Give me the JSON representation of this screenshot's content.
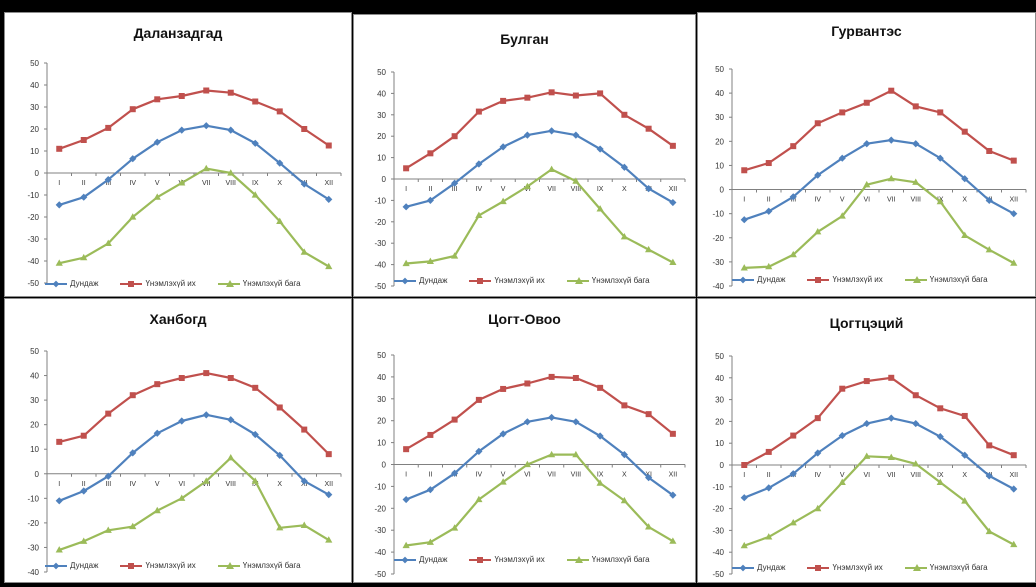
{
  "colors": {
    "avg": "#4F81BD",
    "max": "#C0504D",
    "min": "#9BBB59",
    "grid_axis": "#808080",
    "background": "#ffffff"
  },
  "legend_labels": [
    "Дундаж",
    "Үнэмлэхүй их",
    "Үнэмлэхүй бага"
  ],
  "chart_data": [
    {
      "type": "line",
      "title": "Даланзадгад",
      "categories": [
        "I",
        "II",
        "III",
        "IV",
        "V",
        "VI",
        "VII",
        "VIII",
        "IX",
        "X",
        "XI",
        "XII"
      ],
      "ylim": [
        -50,
        50
      ],
      "yticks": [
        50,
        40,
        30,
        20,
        10,
        0,
        -10,
        -20,
        -30,
        -40,
        -50
      ],
      "grid": false,
      "legend_position": "bottom",
      "series": [
        {
          "name": "Дундаж",
          "marker": "diamond",
          "values": [
            -14.5,
            -11,
            -3,
            6.5,
            14,
            19.5,
            21.5,
            19.5,
            13.5,
            4.5,
            -5,
            -12
          ]
        },
        {
          "name": "Үнэмлэхүй их",
          "marker": "square",
          "values": [
            11,
            15,
            20.5,
            29,
            33.5,
            35,
            37.5,
            36.5,
            32.5,
            28,
            20,
            12.5
          ]
        },
        {
          "name": "Үнэмлэхүй бага",
          "marker": "triangle",
          "values": [
            -41,
            -38.5,
            -32,
            -20,
            -11,
            -4.5,
            2,
            0,
            -10,
            -22,
            -36,
            -42.5
          ]
        }
      ]
    },
    {
      "type": "line",
      "title": "Булган",
      "categories": [
        "I",
        "II",
        "III",
        "IV",
        "V",
        "VI",
        "VII",
        "VIII",
        "IX",
        "X",
        "XI",
        "XII"
      ],
      "ylim": [
        -50,
        50
      ],
      "yticks": [
        50,
        40,
        30,
        20,
        10,
        0,
        -10,
        -20,
        -30,
        -40,
        -50
      ],
      "grid": false,
      "legend_position": "bottom",
      "series": [
        {
          "name": "Дундаж",
          "marker": "diamond",
          "values": [
            -13,
            -10,
            -2,
            7,
            15,
            20.5,
            22.5,
            20.5,
            14,
            5.5,
            -4.5,
            -11
          ]
        },
        {
          "name": "Үнэмлэхүй их",
          "marker": "square",
          "values": [
            5,
            12,
            20,
            31.5,
            36.5,
            38,
            40.5,
            39,
            40,
            30,
            23.5,
            15.5
          ]
        },
        {
          "name": "Үнэмлэхүй бага",
          "marker": "triangle",
          "values": [
            -39.5,
            -38.5,
            -36,
            -17,
            -10.5,
            -3.5,
            4.5,
            -1,
            -14,
            -27,
            -33,
            -39
          ]
        }
      ]
    },
    {
      "type": "line",
      "title": "Гурвантэс",
      "categories": [
        "I",
        "II",
        "III",
        "IV",
        "V",
        "VI",
        "VII",
        "VIII",
        "IX",
        "X",
        "XI",
        "XII"
      ],
      "ylim": [
        -40,
        50
      ],
      "yticks": [
        50,
        40,
        30,
        20,
        10,
        0,
        -10,
        -20,
        -30,
        -40
      ],
      "grid": false,
      "legend_position": "bottom",
      "series": [
        {
          "name": "Дундаж",
          "marker": "diamond",
          "values": [
            -12.5,
            -9,
            -3,
            6,
            13,
            19,
            20.5,
            19,
            13,
            4.5,
            -4.5,
            -10
          ]
        },
        {
          "name": "Үнэмлэхүй их",
          "marker": "square",
          "values": [
            8,
            11,
            18,
            27.5,
            32,
            36,
            41,
            34.5,
            32,
            24,
            16,
            12
          ]
        },
        {
          "name": "Үнэмлэхүй бага",
          "marker": "triangle",
          "values": [
            -32.5,
            -32,
            -27,
            -17.5,
            -11,
            2,
            4.5,
            3,
            -5,
            -19,
            -25,
            -30.5
          ]
        }
      ]
    },
    {
      "type": "line",
      "title": "Ханбогд",
      "categories": [
        "I",
        "II",
        "III",
        "IV",
        "V",
        "VI",
        "VII",
        "VIII",
        "IX",
        "X",
        "XI",
        "XII"
      ],
      "ylim": [
        -40,
        50
      ],
      "yticks": [
        50,
        40,
        30,
        20,
        10,
        0,
        -10,
        -20,
        -30,
        -40
      ],
      "grid": false,
      "legend_position": "bottom",
      "series": [
        {
          "name": "Дундаж",
          "marker": "diamond",
          "values": [
            -11,
            -7,
            -1,
            8.5,
            16.5,
            21.5,
            24,
            22,
            16,
            7.5,
            -3,
            -8.5
          ]
        },
        {
          "name": "Үнэмлэхүй их",
          "marker": "square",
          "values": [
            13,
            15.5,
            24.5,
            32,
            36.5,
            39,
            41,
            39,
            35,
            27,
            18,
            8
          ]
        },
        {
          "name": "Үнэмлэхүй бага",
          "marker": "triangle",
          "values": [
            -31,
            -27.5,
            -23,
            -21.5,
            -15,
            -10,
            -3,
            6.5,
            -3,
            -22,
            -21,
            -27
          ]
        }
      ]
    },
    {
      "type": "line",
      "title": "Цогт-Овоо",
      "categories": [
        "I",
        "II",
        "III",
        "IV",
        "V",
        "VI",
        "VII",
        "VIII",
        "IX",
        "X",
        "XI",
        "XII"
      ],
      "ylim": [
        -50,
        50
      ],
      "yticks": [
        50,
        40,
        30,
        20,
        10,
        0,
        -10,
        -20,
        -30,
        -40,
        -50
      ],
      "grid": false,
      "legend_position": "bottom",
      "series": [
        {
          "name": "Дундаж",
          "marker": "diamond",
          "values": [
            -16,
            -11.5,
            -4,
            6,
            14,
            19.5,
            21.5,
            19.5,
            13,
            4.5,
            -6,
            -14
          ]
        },
        {
          "name": "Үнэмлэхүй их",
          "marker": "square",
          "values": [
            7,
            13.5,
            20.5,
            29.5,
            34.5,
            37,
            40,
            39.5,
            35,
            27,
            23,
            14
          ]
        },
        {
          "name": "Үнэмлэхүй бага",
          "marker": "triangle",
          "values": [
            -37,
            -35.5,
            -29,
            -16,
            -8,
            0,
            4.5,
            4.5,
            -8.5,
            -16.5,
            -28.5,
            -35
          ]
        }
      ]
    },
    {
      "type": "line",
      "title": "Цогтцэций",
      "categories": [
        "I",
        "II",
        "III",
        "IV",
        "V",
        "VI",
        "VII",
        "VIII",
        "IX",
        "X",
        "XI",
        "XII"
      ],
      "ylim": [
        -50,
        50
      ],
      "yticks": [
        50,
        40,
        30,
        20,
        10,
        0,
        -10,
        -20,
        -30,
        -40,
        -50
      ],
      "grid": false,
      "legend_position": "bottom",
      "series": [
        {
          "name": "Дундаж",
          "marker": "diamond",
          "values": [
            -15,
            -10.5,
            -4,
            5.5,
            13.5,
            19,
            21.5,
            19,
            13,
            4.5,
            -5,
            -11
          ]
        },
        {
          "name": "Үнэмлэхүй их",
          "marker": "square",
          "values": [
            0,
            6,
            13.5,
            21.5,
            35,
            38.5,
            40,
            32,
            26,
            22.5,
            9,
            4.5
          ]
        },
        {
          "name": "Үнэмлэхүй бага",
          "marker": "triangle",
          "values": [
            -37,
            -33,
            -26.5,
            -20,
            -8,
            4,
            3.5,
            0.5,
            -8,
            -16.5,
            -30.5,
            -36.5
          ]
        }
      ]
    }
  ]
}
